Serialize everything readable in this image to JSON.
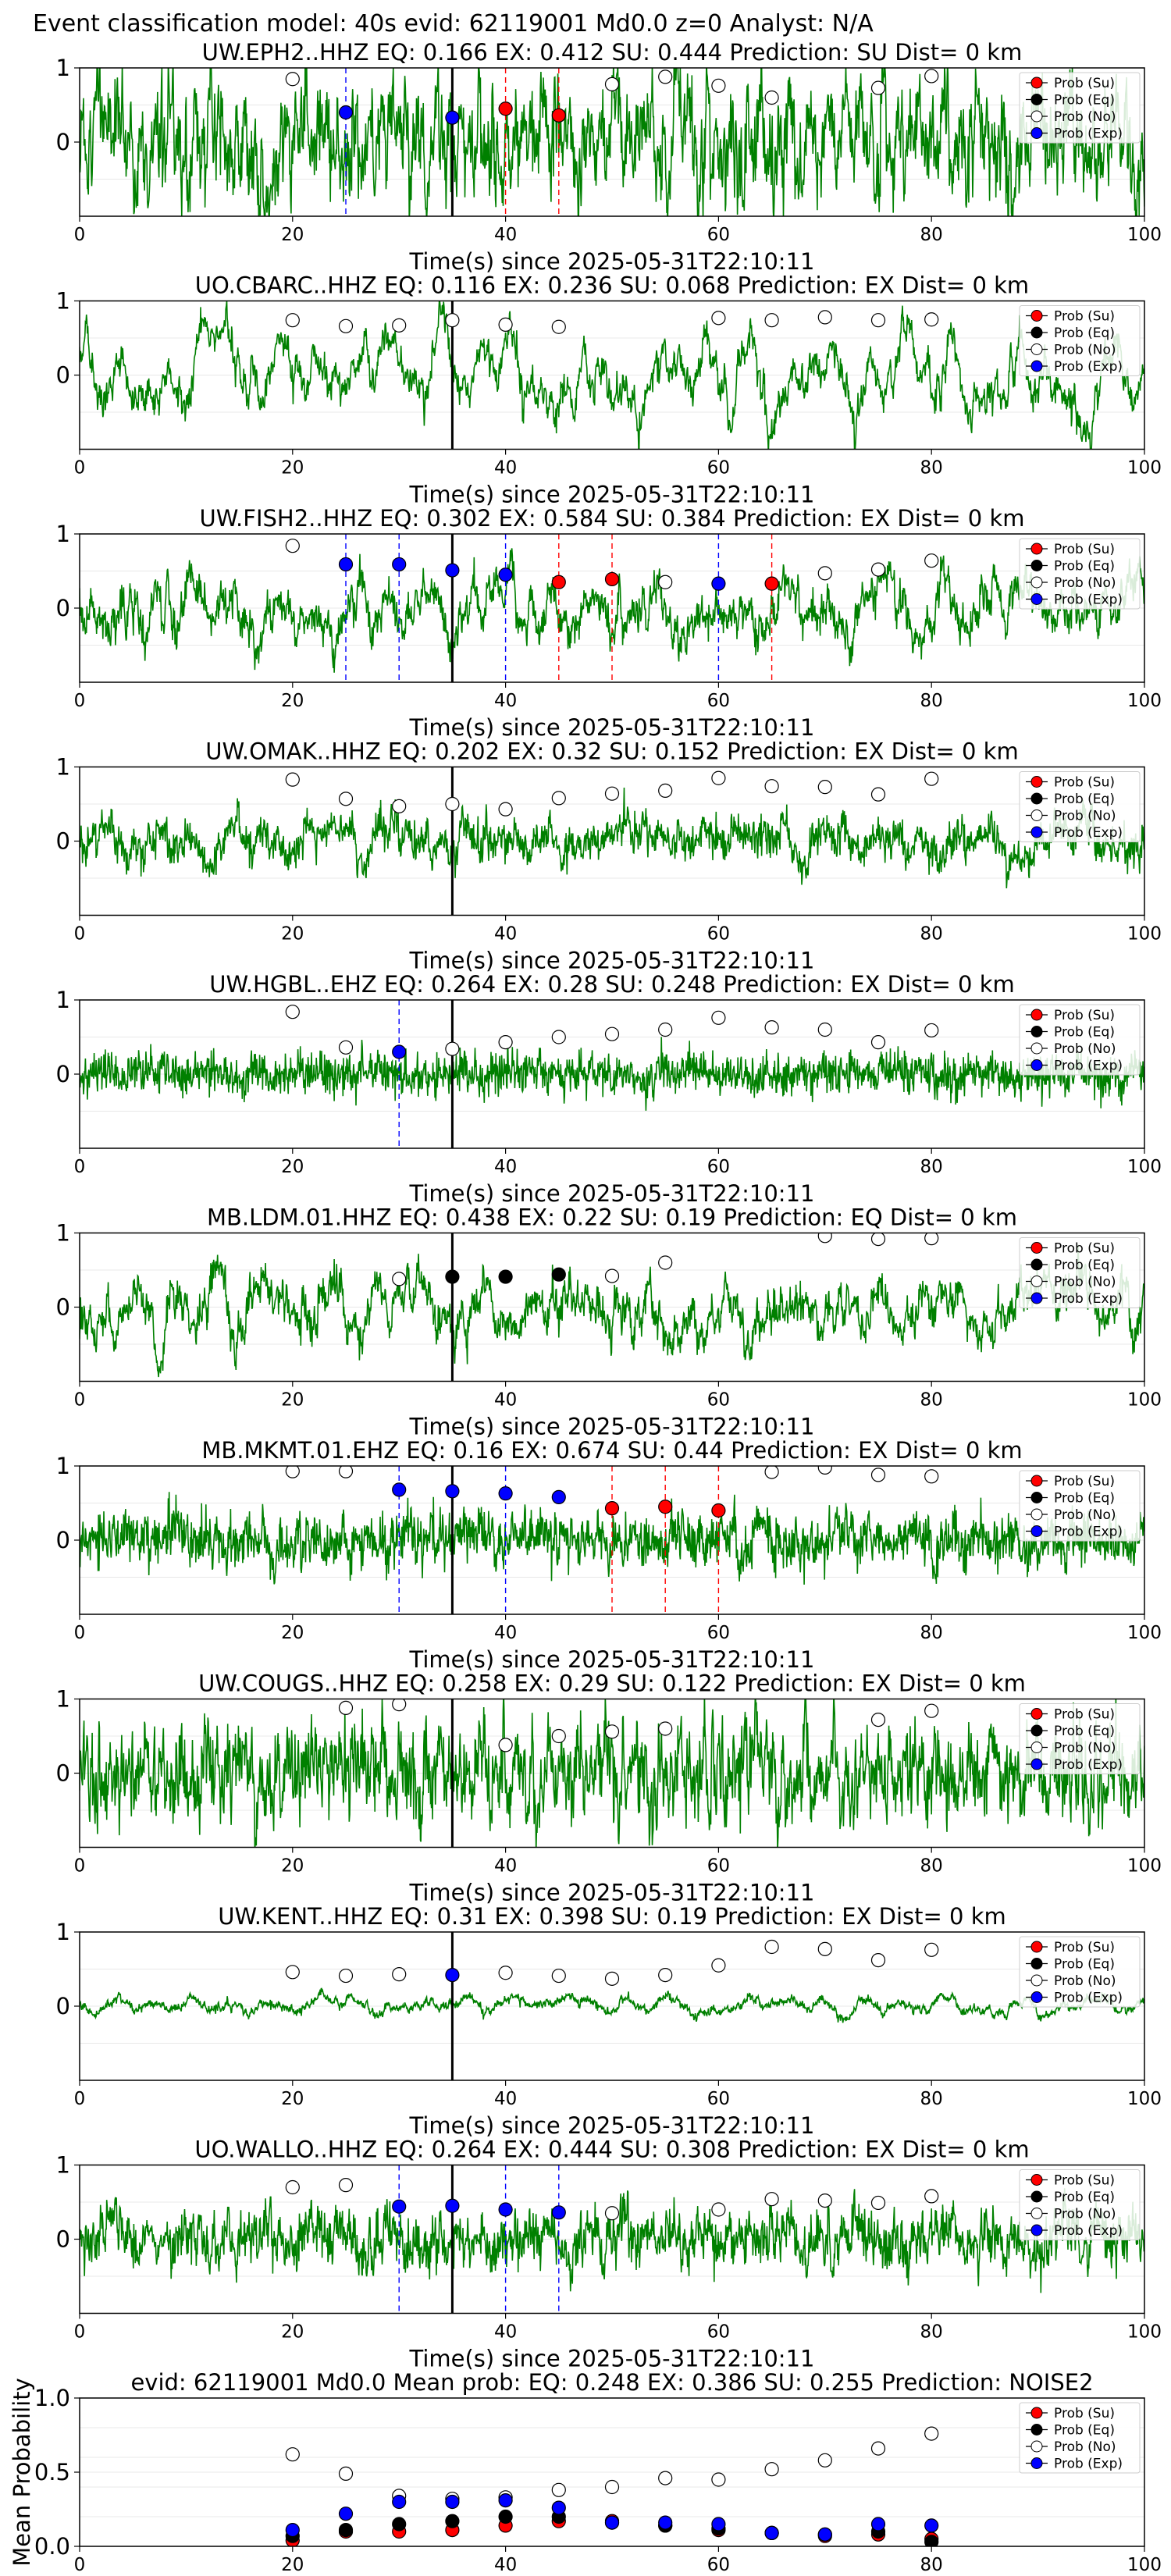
{
  "suptitle": "Event classification model: 40s evid: 62119001 Md0.0 z=0 Analyst: N/A",
  "colors": {
    "waveform": "#008000",
    "prob_su": "#ff0000",
    "prob_eq": "#000000",
    "prob_no": "#ffffff",
    "prob_exp": "#0000ff",
    "pick_line": "#000000"
  },
  "legend_labels": [
    "Prob (Su)",
    "Prob (Eq)",
    "Prob (No)",
    "Prob (Exp)"
  ],
  "chart_data": [
    {
      "type": "line",
      "title": "UW.EPH2..HHZ   EQ: 0.166  EX: 0.412  SU: 0.444   Prediction: SU    Dist= 0 km",
      "xlabel": "Time(s) since 2025-05-31T22:10:11",
      "xlim": [
        0,
        100
      ],
      "ylim": [
        -1,
        1
      ],
      "xticks": [
        "0",
        "20",
        "40",
        "60",
        "80",
        "100"
      ],
      "yticks": [
        "0",
        "1"
      ],
      "pick_time": 35,
      "amp": 0.55,
      "noise": 0.7,
      "smooth": 0.2,
      "prob_no": [
        [
          20,
          0.85
        ],
        [
          50,
          0.78
        ],
        [
          55,
          0.88
        ],
        [
          60,
          0.76
        ],
        [
          65,
          0.6
        ],
        [
          75,
          0.73
        ],
        [
          80,
          0.89
        ]
      ],
      "prob_su": [
        [
          40,
          0.45
        ],
        [
          45,
          0.36
        ]
      ],
      "prob_eq": [],
      "prob_exp": [
        [
          25,
          0.4
        ],
        [
          35,
          0.33
        ]
      ],
      "vlines_su": [
        40,
        45
      ],
      "vlines_exp": [
        25
      ]
    },
    {
      "type": "line",
      "title": "UO.CBARC..HHZ   EQ: 0.116  EX: 0.236  SU: 0.068   Prediction: EX    Dist= 0 km",
      "xlabel": "Time(s) since 2025-05-31T22:10:11",
      "xlim": [
        0,
        100
      ],
      "ylim": [
        -1,
        1
      ],
      "xticks": [
        "0",
        "20",
        "40",
        "60",
        "80",
        "100"
      ],
      "yticks": [
        "0",
        "1"
      ],
      "pick_time": 35,
      "amp": 0.7,
      "noise": 0.25,
      "smooth": 0.06,
      "prob_no": [
        [
          20,
          0.74
        ],
        [
          25,
          0.66
        ],
        [
          30,
          0.67
        ],
        [
          35,
          0.74
        ],
        [
          40,
          0.68
        ],
        [
          45,
          0.65
        ],
        [
          60,
          0.77
        ],
        [
          65,
          0.74
        ],
        [
          70,
          0.78
        ],
        [
          75,
          0.74
        ],
        [
          80,
          0.75
        ]
      ],
      "prob_su": [],
      "prob_eq": [],
      "prob_exp": [],
      "vlines_su": [],
      "vlines_exp": []
    },
    {
      "type": "line",
      "title": "UW.FISH2..HHZ   EQ: 0.302  EX: 0.584  SU: 0.384   Prediction: EX    Dist= 0 km",
      "xlabel": "Time(s) since 2025-05-31T22:10:11",
      "xlim": [
        0,
        100
      ],
      "ylim": [
        -1,
        1
      ],
      "xticks": [
        "0",
        "20",
        "40",
        "60",
        "80",
        "100"
      ],
      "yticks": [
        "0",
        "1"
      ],
      "pick_time": 35,
      "amp": 0.55,
      "noise": 0.35,
      "smooth": 0.07,
      "prob_no": [
        [
          20,
          0.84
        ],
        [
          55,
          0.35
        ],
        [
          70,
          0.47
        ],
        [
          75,
          0.52
        ],
        [
          80,
          0.64
        ]
      ],
      "prob_su": [
        [
          45,
          0.35
        ],
        [
          50,
          0.39
        ],
        [
          65,
          0.33
        ]
      ],
      "prob_eq": [],
      "prob_exp": [
        [
          25,
          0.59
        ],
        [
          30,
          0.59
        ],
        [
          35,
          0.51
        ],
        [
          40,
          0.45
        ],
        [
          60,
          0.33
        ]
      ],
      "vlines_su": [
        45,
        50,
        65
      ],
      "vlines_exp": [
        25,
        30,
        40,
        60
      ]
    },
    {
      "type": "line",
      "title": "UW.OMAK..HHZ   EQ: 0.202  EX: 0.32  SU: 0.152   Prediction: EX    Dist= 0 km",
      "xlabel": "Time(s) since 2025-05-31T22:10:11",
      "xlim": [
        0,
        100
      ],
      "ylim": [
        -1,
        1
      ],
      "xticks": [
        "0",
        "20",
        "40",
        "60",
        "80",
        "100"
      ],
      "yticks": [
        "0",
        "1"
      ],
      "pick_time": 35,
      "amp": 0.3,
      "noise": 0.4,
      "smooth": 0.1,
      "prob_no": [
        [
          20,
          0.83
        ],
        [
          25,
          0.57
        ],
        [
          30,
          0.47
        ],
        [
          35,
          0.5
        ],
        [
          40,
          0.43
        ],
        [
          45,
          0.58
        ],
        [
          50,
          0.64
        ],
        [
          55,
          0.68
        ],
        [
          60,
          0.85
        ],
        [
          65,
          0.74
        ],
        [
          70,
          0.73
        ],
        [
          75,
          0.63
        ],
        [
          80,
          0.84
        ]
      ],
      "prob_su": [],
      "prob_eq": [],
      "prob_exp": [],
      "vlines_su": [],
      "vlines_exp": []
    },
    {
      "type": "line",
      "title": "UW.HGBL..EHZ   EQ: 0.264  EX: 0.28  SU: 0.248   Prediction: EX    Dist= 0 km",
      "xlabel": "Time(s) since 2025-05-31T22:10:11",
      "xlim": [
        0,
        100
      ],
      "ylim": [
        -1,
        1
      ],
      "xticks": [
        "0",
        "20",
        "40",
        "60",
        "80",
        "100"
      ],
      "yticks": [
        "0",
        "1"
      ],
      "pick_time": 35,
      "amp": 0.08,
      "noise": 0.5,
      "smooth": 0.3,
      "prob_no": [
        [
          20,
          0.84
        ],
        [
          25,
          0.36
        ],
        [
          35,
          0.34
        ],
        [
          40,
          0.43
        ],
        [
          45,
          0.5
        ],
        [
          50,
          0.54
        ],
        [
          55,
          0.6
        ],
        [
          60,
          0.76
        ],
        [
          65,
          0.63
        ],
        [
          70,
          0.6
        ],
        [
          75,
          0.43
        ],
        [
          80,
          0.59
        ]
      ],
      "prob_su": [],
      "prob_eq": [],
      "prob_exp": [
        [
          30,
          0.3
        ]
      ],
      "vlines_su": [],
      "vlines_exp": [
        30
      ]
    },
    {
      "type": "line",
      "title": "MB.LDM.01.HHZ   EQ: 0.438  EX: 0.22  SU: 0.19   Prediction: EQ    Dist= 0 km",
      "xlabel": "Time(s) since 2025-05-31T22:10:11",
      "xlim": [
        0,
        100
      ],
      "ylim": [
        -1,
        1
      ],
      "xticks": [
        "0",
        "20",
        "40",
        "60",
        "80",
        "100"
      ],
      "yticks": [
        "0",
        "1"
      ],
      "pick_time": 35,
      "amp": 0.6,
      "noise": 0.35,
      "smooth": 0.07,
      "prob_no": [
        [
          30,
          0.38
        ],
        [
          50,
          0.42
        ],
        [
          55,
          0.6
        ],
        [
          70,
          0.96
        ],
        [
          75,
          0.92
        ],
        [
          80,
          0.93
        ]
      ],
      "prob_su": [],
      "prob_eq": [
        [
          35,
          0.41
        ],
        [
          40,
          0.41
        ],
        [
          45,
          0.44
        ]
      ],
      "prob_exp": [],
      "vlines_su": [],
      "vlines_exp": []
    },
    {
      "type": "line",
      "title": "MB.MKMT.01.EHZ   EQ: 0.16  EX: 0.674  SU: 0.44   Prediction: EX    Dist= 0 km",
      "xlabel": "Time(s) since 2025-05-31T22:10:11",
      "xlim": [
        0,
        100
      ],
      "ylim": [
        -1,
        1
      ],
      "xticks": [
        "0",
        "20",
        "40",
        "60",
        "80",
        "100"
      ],
      "yticks": [
        "0",
        "1"
      ],
      "pick_time": 35,
      "amp": 0.15,
      "noise": 0.6,
      "smooth": 0.2,
      "prob_no": [
        [
          20,
          0.93
        ],
        [
          25,
          0.93
        ],
        [
          65,
          0.92
        ],
        [
          70,
          0.98
        ],
        [
          75,
          0.88
        ],
        [
          80,
          0.86
        ]
      ],
      "prob_su": [
        [
          50,
          0.43
        ],
        [
          55,
          0.45
        ],
        [
          60,
          0.4
        ]
      ],
      "prob_eq": [],
      "prob_exp": [
        [
          30,
          0.68
        ],
        [
          35,
          0.66
        ],
        [
          40,
          0.63
        ],
        [
          45,
          0.58
        ]
      ],
      "vlines_su": [
        50,
        55,
        60
      ],
      "vlines_exp": [
        30,
        40
      ]
    },
    {
      "type": "line",
      "title": "UW.COUGS..HHZ   EQ: 0.258  EX: 0.29  SU: 0.122   Prediction: EX    Dist= 0 km",
      "xlabel": "Time(s) since 2025-05-31T22:10:11",
      "xlim": [
        0,
        100
      ],
      "ylim": [
        -1,
        1
      ],
      "xticks": [
        "0",
        "20",
        "40",
        "60",
        "80",
        "100"
      ],
      "yticks": [
        "0",
        "1"
      ],
      "pick_time": 35,
      "amp": 0.35,
      "noise": 0.6,
      "smooth": 0.3,
      "prob_no": [
        [
          25,
          0.88
        ],
        [
          30,
          0.93
        ],
        [
          40,
          0.38
        ],
        [
          45,
          0.5
        ],
        [
          50,
          0.56
        ],
        [
          55,
          0.6
        ],
        [
          75,
          0.72
        ],
        [
          80,
          0.84
        ]
      ],
      "prob_su": [],
      "prob_eq": [],
      "prob_exp": [],
      "vlines_su": [],
      "vlines_exp": []
    },
    {
      "type": "line",
      "title": "UW.KENT..HHZ   EQ: 0.31  EX: 0.398  SU: 0.19   Prediction: EX    Dist= 0 km",
      "xlabel": "Time(s) since 2025-05-31T22:10:11",
      "xlim": [
        0,
        100
      ],
      "ylim": [
        -1,
        1
      ],
      "xticks": [
        "0",
        "20",
        "40",
        "60",
        "80",
        "100"
      ],
      "yticks": [
        "0",
        "1"
      ],
      "pick_time": 35,
      "amp": 0.18,
      "noise": 0.08,
      "smooth": 0.05,
      "prob_no": [
        [
          20,
          0.46
        ],
        [
          25,
          0.41
        ],
        [
          30,
          0.43
        ],
        [
          40,
          0.45
        ],
        [
          45,
          0.41
        ],
        [
          50,
          0.37
        ],
        [
          55,
          0.42
        ],
        [
          60,
          0.55
        ],
        [
          65,
          0.8
        ],
        [
          70,
          0.77
        ],
        [
          75,
          0.62
        ],
        [
          80,
          0.76
        ]
      ],
      "prob_su": [],
      "prob_eq": [],
      "prob_exp": [
        [
          35,
          0.42
        ]
      ],
      "vlines_su": [],
      "vlines_exp": []
    },
    {
      "type": "line",
      "title": "UO.WALLO..HHZ   EQ: 0.264  EX: 0.444  SU: 0.308   Prediction: EX    Dist= 0 km",
      "xlabel": "Time(s) since 2025-05-31T22:10:11",
      "xlim": [
        0,
        100
      ],
      "ylim": [
        -1,
        1
      ],
      "xticks": [
        "0",
        "20",
        "40",
        "60",
        "80",
        "100"
      ],
      "yticks": [
        "0",
        "1"
      ],
      "pick_time": 35,
      "amp": 0.2,
      "noise": 0.5,
      "smooth": 0.25,
      "prob_no": [
        [
          20,
          0.7
        ],
        [
          25,
          0.73
        ],
        [
          50,
          0.35
        ],
        [
          60,
          0.4
        ],
        [
          65,
          0.54
        ],
        [
          70,
          0.52
        ],
        [
          75,
          0.49
        ],
        [
          80,
          0.58
        ]
      ],
      "prob_su": [],
      "prob_eq": [],
      "prob_exp": [
        [
          30,
          0.44
        ],
        [
          35,
          0.45
        ],
        [
          40,
          0.4
        ],
        [
          45,
          0.36
        ]
      ],
      "vlines_su": [],
      "vlines_exp": [
        30,
        40,
        45
      ]
    },
    {
      "type": "scatter",
      "title": "evid: 62119001  Md0.0   Mean prob:   EQ: 0.248  EX: 0.386  SU: 0.255   Prediction: NOISE2",
      "ylabel": "Mean Probability",
      "xlim": [
        0,
        100
      ],
      "ylim": [
        0,
        1
      ],
      "xticks": [
        "0",
        "20",
        "40",
        "60",
        "80",
        "100"
      ],
      "yticks": [
        "0.0",
        "0.5",
        "1.0"
      ],
      "prob_no": [
        [
          20,
          0.62
        ],
        [
          25,
          0.49
        ],
        [
          30,
          0.34
        ],
        [
          35,
          0.32
        ],
        [
          40,
          0.33
        ],
        [
          45,
          0.38
        ],
        [
          50,
          0.4
        ],
        [
          55,
          0.46
        ],
        [
          60,
          0.45
        ],
        [
          65,
          0.52
        ],
        [
          70,
          0.58
        ],
        [
          75,
          0.66
        ],
        [
          80,
          0.76
        ]
      ],
      "prob_su": [
        [
          20,
          0.04
        ],
        [
          25,
          0.1
        ],
        [
          30,
          0.1
        ],
        [
          35,
          0.11
        ],
        [
          40,
          0.14
        ],
        [
          45,
          0.17
        ],
        [
          50,
          0.17
        ],
        [
          55,
          0.14
        ],
        [
          60,
          0.11
        ],
        [
          65,
          0.09
        ],
        [
          70,
          0.07
        ],
        [
          75,
          0.08
        ],
        [
          80,
          0.05
        ]
      ],
      "prob_eq": [
        [
          20,
          0.07
        ],
        [
          25,
          0.11
        ],
        [
          30,
          0.15
        ],
        [
          35,
          0.17
        ],
        [
          40,
          0.2
        ],
        [
          45,
          0.2
        ],
        [
          50,
          0.16
        ],
        [
          55,
          0.14
        ],
        [
          60,
          0.12
        ],
        [
          65,
          0.09
        ],
        [
          70,
          0.08
        ],
        [
          75,
          0.1
        ],
        [
          80,
          0.03
        ]
      ],
      "prob_exp": [
        [
          20,
          0.11
        ],
        [
          25,
          0.22
        ],
        [
          30,
          0.3
        ],
        [
          35,
          0.3
        ],
        [
          40,
          0.31
        ],
        [
          45,
          0.26
        ],
        [
          50,
          0.16
        ],
        [
          55,
          0.16
        ],
        [
          60,
          0.15
        ],
        [
          65,
          0.09
        ],
        [
          70,
          0.08
        ],
        [
          75,
          0.15
        ],
        [
          80,
          0.14
        ]
      ]
    }
  ]
}
